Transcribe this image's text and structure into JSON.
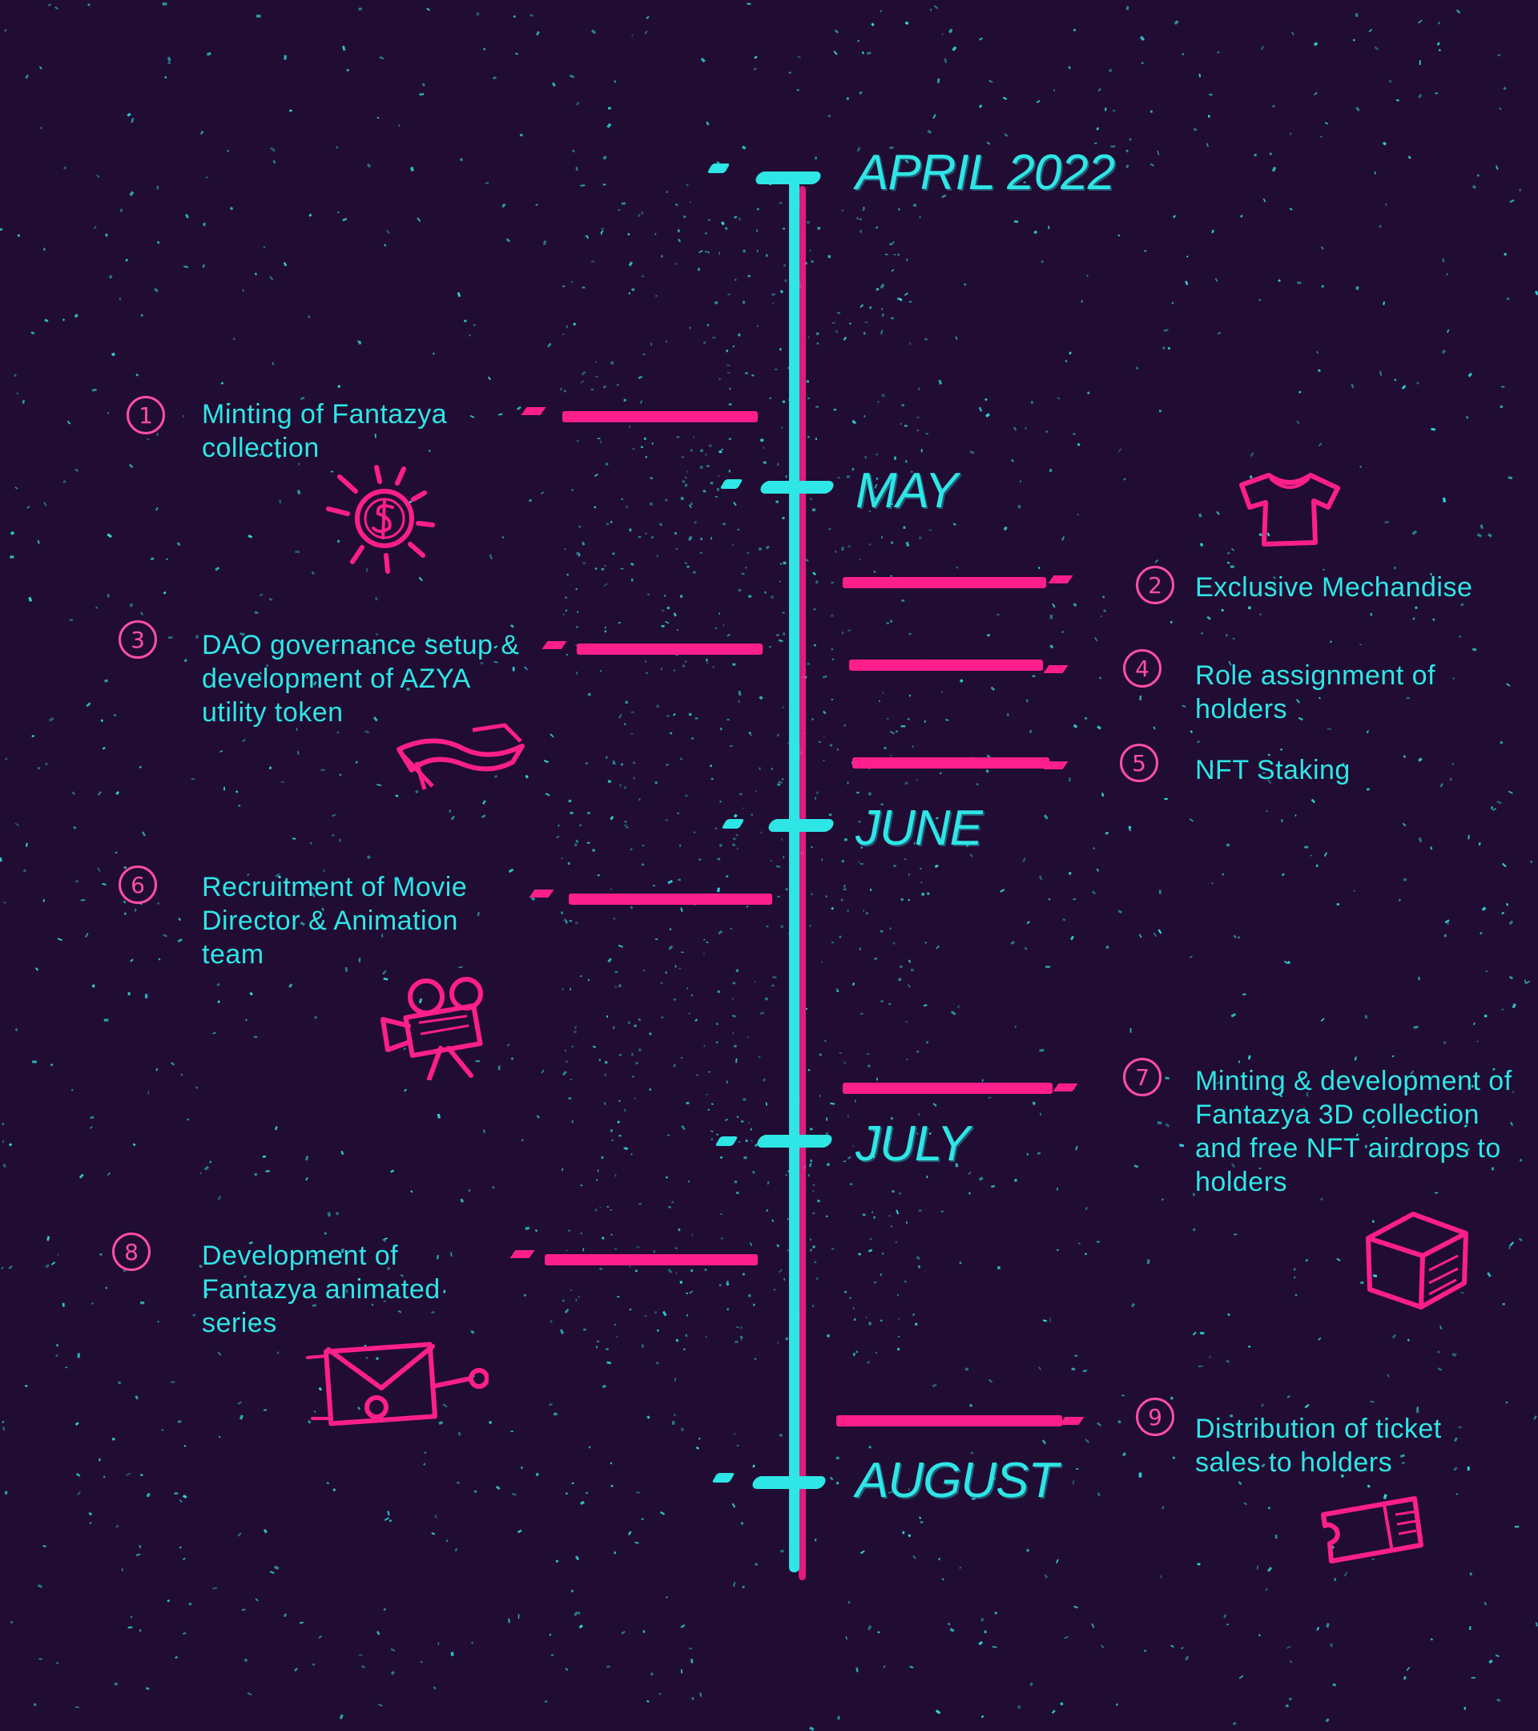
{
  "months": [
    {
      "label": "APRIL 2022"
    },
    {
      "label": "MAY"
    },
    {
      "label": "JUNE"
    },
    {
      "label": "JULY"
    },
    {
      "label": "AUGUST"
    }
  ],
  "milestones": [
    {
      "number": "1",
      "text": "Minting of Fantazya collection",
      "icon": "coin-icon"
    },
    {
      "number": "2",
      "text": "Exclusive Mechandise",
      "icon": "tshirt-icon"
    },
    {
      "number": "3",
      "text": "DAO governance setup & development of AZYA utility token",
      "icon": "token-banner-icon"
    },
    {
      "number": "4",
      "text": "Role assignment of holders",
      "icon": ""
    },
    {
      "number": "5",
      "text": "NFT Staking",
      "icon": ""
    },
    {
      "number": "6",
      "text": "Recruitment of Movie Director & Animation team",
      "icon": "movie-camera-icon"
    },
    {
      "number": "7",
      "text": "Minting & development of Fantazya 3D collection and free NFT airdrops to holders",
      "icon": "cube-icon"
    },
    {
      "number": "8",
      "text": "Development of Fantazya animated series",
      "icon": "film-reel-icon"
    },
    {
      "number": "9",
      "text": "Distribution of ticket sales to holders",
      "icon": "ticket-icon"
    }
  ],
  "colors": {
    "background": "#210c33",
    "accent_cyan": "#2ee6e6",
    "accent_pink": "#ff1f8c"
  }
}
